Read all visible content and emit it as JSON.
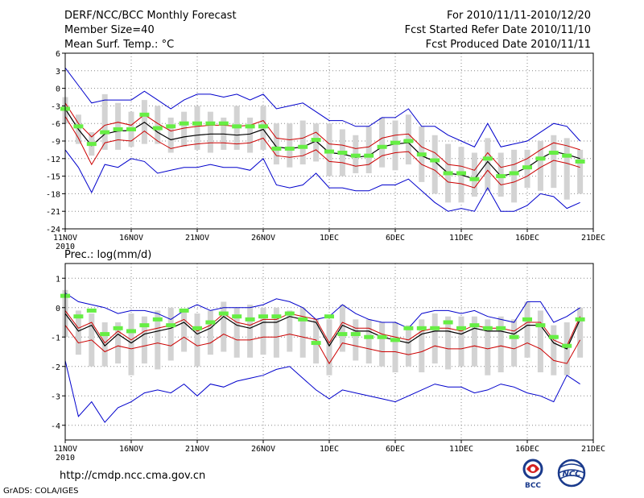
{
  "header": {
    "title": "DERF/NCC/BCC Monthly Forecast",
    "member_size": "Member Size=40",
    "variable": "Mean Surf. Temp.: °C",
    "period": "For 2010/11/11-2010/12/20",
    "fcst_started": "Fcst Started Refer Date 2010/11/10",
    "fcst_produced": "Fcst Produced Date 2010/11/11"
  },
  "footer": {
    "url": "http://cmdp.ncc.cma.gov.cn",
    "grads": "GrADS: COLA/IGES"
  },
  "logos": {
    "bcc": "BCC",
    "ncc": "NCC"
  },
  "colors": {
    "range_line": "#0000cc",
    "std_line": "#cc0000",
    "mean_line": "#000000",
    "box_fill": "#d3d3d3",
    "median_marker": "#66ee44",
    "grid": "#888888"
  },
  "chart_data": [
    {
      "type": "line",
      "panel": "temperature",
      "title": "Mean Surf. Temp.: °C",
      "ylabel": "°C",
      "ylim": [
        -24,
        6
      ],
      "yticks": [
        6,
        3,
        0,
        -3,
        -6,
        -9,
        -12,
        -15,
        -18,
        -21,
        -24
      ],
      "xticks": [
        {
          "day": 0,
          "label": "11NOV",
          "sub": "2010"
        },
        {
          "day": 5,
          "label": "16NOV"
        },
        {
          "day": 10,
          "label": "21NOV"
        },
        {
          "day": 15,
          "label": "26NOV"
        },
        {
          "day": 20,
          "label": "1DEC"
        },
        {
          "day": 25,
          "label": "6DEC"
        },
        {
          "day": 30,
          "label": "11DEC"
        },
        {
          "day": 35,
          "label": "16DEC"
        },
        {
          "day": 40,
          "label": "21DEC"
        }
      ],
      "days": [
        0,
        1,
        2,
        3,
        4,
        5,
        6,
        7,
        8,
        9,
        10,
        11,
        12,
        13,
        14,
        15,
        16,
        17,
        18,
        19,
        20,
        21,
        22,
        23,
        24,
        25,
        26,
        27,
        28,
        29,
        30,
        31,
        32,
        33,
        34,
        35,
        36,
        37,
        38,
        39
      ],
      "mean": [
        -3.5,
        -7.0,
        -9.8,
        -7.8,
        -7.3,
        -7.2,
        -5.8,
        -7.5,
        -8.8,
        -8.3,
        -8.0,
        -7.8,
        -7.8,
        -8.0,
        -7.8,
        -7.0,
        -10.0,
        -10.3,
        -10.0,
        -9.0,
        -11.0,
        -11.2,
        -11.8,
        -11.5,
        -10.0,
        -9.5,
        -9.3,
        -11.5,
        -12.5,
        -14.5,
        -14.8,
        -15.5,
        -12.5,
        -15.0,
        -14.5,
        -13.5,
        -12.0,
        -10.8,
        -11.3,
        -12.0
      ],
      "std_upper": [
        -2.5,
        -6.0,
        -8.3,
        -6.3,
        -5.8,
        -6.3,
        -4.5,
        -6.0,
        -7.3,
        -6.8,
        -6.5,
        -6.3,
        -6.3,
        -6.5,
        -6.3,
        -5.5,
        -8.5,
        -8.8,
        -8.5,
        -7.5,
        -9.5,
        -9.7,
        -10.3,
        -10.0,
        -8.5,
        -8.0,
        -7.8,
        -10.0,
        -11.0,
        -13.0,
        -13.3,
        -14.0,
        -11.0,
        -13.5,
        -13.0,
        -12.0,
        -10.5,
        -9.3,
        -9.8,
        -10.5
      ],
      "std_lower": [
        -4.8,
        -8.5,
        -13.0,
        -9.3,
        -8.8,
        -9.0,
        -7.3,
        -9.0,
        -10.3,
        -9.8,
        -9.5,
        -9.3,
        -9.3,
        -9.5,
        -9.3,
        -8.5,
        -11.5,
        -11.8,
        -11.5,
        -10.5,
        -12.5,
        -12.7,
        -13.3,
        -13.0,
        -11.5,
        -11.0,
        -10.8,
        -13.0,
        -14.0,
        -16.0,
        -16.3,
        -17.0,
        -14.0,
        -16.5,
        -16.0,
        -15.0,
        -13.5,
        -12.3,
        -12.8,
        -13.5
      ],
      "max": [
        3.5,
        0.5,
        -2.5,
        -2.0,
        -2.0,
        -2.0,
        -0.5,
        -2.0,
        -3.5,
        -2.0,
        -1.0,
        -1.0,
        -1.5,
        -1.0,
        -2.0,
        -1.0,
        -3.5,
        -3.0,
        -2.5,
        -4.0,
        -5.5,
        -5.5,
        -6.5,
        -6.5,
        -5.0,
        -5.0,
        -3.5,
        -6.5,
        -6.5,
        -8.0,
        -9.0,
        -10.0,
        -6.0,
        -10.0,
        -9.5,
        -9.0,
        -7.5,
        -6.0,
        -6.5,
        -9.0
      ],
      "min": [
        -10.5,
        -13.5,
        -17.8,
        -13.0,
        -13.5,
        -12.0,
        -12.5,
        -14.5,
        -14.0,
        -13.5,
        -13.5,
        -13.0,
        -13.5,
        -13.5,
        -14.0,
        -12.0,
        -16.5,
        -17.0,
        -16.5,
        -14.5,
        -17.0,
        -17.0,
        -17.5,
        -17.5,
        -16.5,
        -16.5,
        -15.5,
        -17.5,
        -19.5,
        -21.0,
        -20.5,
        -21.0,
        -17.0,
        -21.0,
        -21.0,
        -20.0,
        -18.0,
        -18.5,
        -20.5,
        -19.5
      ],
      "box_upper": [
        -1.5,
        -4.5,
        -7.5,
        -1.0,
        -2.5,
        -4.0,
        -2.0,
        -3.0,
        -5.0,
        -4.0,
        -3.0,
        -4.0,
        -5.0,
        -3.0,
        -5.0,
        -3.0,
        -6.0,
        -6.0,
        -5.5,
        -6.0,
        -6.0,
        -7.0,
        -8.0,
        -6.5,
        -5.0,
        -5.5,
        -4.5,
        -6.5,
        -8.0,
        -9.5,
        -10.0,
        -11.0,
        -8.5,
        -11.0,
        -10.5,
        -10.5,
        -9.0,
        -8.0,
        -8.5,
        -10.5
      ],
      "box_lower": [
        -6.0,
        -9.5,
        -11.5,
        -10.5,
        -10.5,
        -10.0,
        -9.5,
        -9.5,
        -11.0,
        -10.0,
        -10.5,
        -11.0,
        -10.5,
        -10.5,
        -11.0,
        -10.5,
        -13.0,
        -13.5,
        -13.0,
        -12.5,
        -15.0,
        -15.0,
        -14.5,
        -14.5,
        -13.5,
        -14.0,
        -13.0,
        -16.0,
        -18.0,
        -19.5,
        -19.5,
        -18.5,
        -17.5,
        -18.5,
        -19.5,
        -17.0,
        -17.5,
        -17.0,
        -19.0,
        -18.0
      ],
      "median": [
        -3.5,
        -6.5,
        -9.5,
        -7.5,
        -7.0,
        -7.0,
        -4.5,
        -6.8,
        -6.5,
        -6.0,
        -6.0,
        -6.0,
        -6.0,
        -6.5,
        -6.5,
        -6.5,
        -10.3,
        -10.3,
        -10.0,
        -8.8,
        -10.8,
        -11.0,
        -11.5,
        -11.5,
        -10.0,
        -9.3,
        -9.0,
        -11.3,
        -12.3,
        -14.5,
        -14.5,
        -15.5,
        -12.0,
        -15.0,
        -14.5,
        -13.5,
        -12.0,
        -11.0,
        -11.5,
        -12.5
      ]
    },
    {
      "type": "line",
      "panel": "precipitation",
      "title": "Prec.: log(mm/d)",
      "ylabel": "log(mm/d)",
      "ylim": [
        -4.5,
        1.5
      ],
      "yticks": [
        1,
        0,
        -1,
        -2,
        -3,
        -4
      ],
      "xticks": [
        {
          "day": 0,
          "label": "11NOV",
          "sub": "2010"
        },
        {
          "day": 5,
          "label": "16NOV"
        },
        {
          "day": 10,
          "label": "21NOV"
        },
        {
          "day": 15,
          "label": "26NOV"
        },
        {
          "day": 20,
          "label": "1DEC"
        },
        {
          "day": 25,
          "label": "6DEC"
        },
        {
          "day": 30,
          "label": "11DEC"
        },
        {
          "day": 35,
          "label": "16DEC"
        },
        {
          "day": 40,
          "label": "21DEC"
        }
      ],
      "days": [
        0,
        1,
        2,
        3,
        4,
        5,
        6,
        7,
        8,
        9,
        10,
        11,
        12,
        13,
        14,
        15,
        16,
        17,
        18,
        19,
        20,
        21,
        22,
        23,
        24,
        25,
        26,
        27,
        28,
        29,
        30,
        31,
        32,
        33,
        34,
        35,
        36,
        37,
        38,
        39
      ],
      "mean": [
        -0.2,
        -0.8,
        -0.6,
        -1.3,
        -0.9,
        -1.2,
        -0.9,
        -0.8,
        -0.7,
        -0.5,
        -0.9,
        -0.7,
        -0.3,
        -0.6,
        -0.7,
        -0.5,
        -0.5,
        -0.3,
        -0.4,
        -0.5,
        -1.3,
        -0.6,
        -0.8,
        -0.8,
        -1.0,
        -1.1,
        -1.2,
        -0.9,
        -0.8,
        -0.8,
        -0.9,
        -0.7,
        -0.8,
        -0.8,
        -0.9,
        -0.6,
        -0.6,
        -1.2,
        -1.4,
        -0.4
      ],
      "std_upper": [
        -0.1,
        -0.7,
        -0.5,
        -1.2,
        -0.8,
        -1.1,
        -0.8,
        -0.7,
        -0.6,
        -0.4,
        -0.8,
        -0.6,
        -0.2,
        -0.5,
        -0.6,
        -0.4,
        -0.4,
        -0.2,
        -0.3,
        -0.4,
        -1.2,
        -0.5,
        -0.7,
        -0.7,
        -0.9,
        -1.0,
        -1.1,
        -0.8,
        -0.7,
        -0.7,
        -0.8,
        -0.6,
        -0.7,
        -0.7,
        -0.8,
        -0.5,
        -0.5,
        -1.1,
        -1.3,
        -0.3
      ],
      "std_lower": [
        -0.6,
        -1.2,
        -1.1,
        -1.5,
        -1.3,
        -1.4,
        -1.3,
        -1.2,
        -1.3,
        -1.0,
        -1.3,
        -1.2,
        -0.9,
        -1.1,
        -1.1,
        -1.0,
        -1.0,
        -0.9,
        -1.0,
        -1.1,
        -1.9,
        -1.2,
        -1.3,
        -1.4,
        -1.5,
        -1.5,
        -1.6,
        -1.5,
        -1.3,
        -1.4,
        -1.4,
        -1.3,
        -1.4,
        -1.3,
        -1.4,
        -1.2,
        -1.4,
        -1.8,
        -1.9,
        -1.1
      ],
      "max": [
        0.5,
        0.2,
        0.1,
        0.0,
        -0.2,
        -0.1,
        -0.1,
        -0.2,
        -0.4,
        -0.1,
        0.1,
        -0.1,
        0.0,
        0.0,
        0.0,
        0.1,
        0.3,
        0.2,
        0.0,
        -0.4,
        -0.3,
        0.1,
        -0.2,
        -0.4,
        -0.5,
        -0.5,
        -0.7,
        -0.2,
        -0.1,
        -0.1,
        -0.2,
        -0.1,
        -0.3,
        -0.4,
        -0.5,
        0.2,
        0.2,
        -0.5,
        -0.3,
        0.0
      ],
      "min": [
        -1.8,
        -3.7,
        -3.2,
        -3.9,
        -3.4,
        -3.2,
        -2.9,
        -2.8,
        -2.9,
        -2.6,
        -3.0,
        -2.6,
        -2.7,
        -2.5,
        -2.4,
        -2.3,
        -2.1,
        -2.0,
        -2.4,
        -2.8,
        -3.1,
        -2.8,
        -2.9,
        -3.0,
        -3.1,
        -3.2,
        -3.0,
        -2.8,
        -2.6,
        -2.7,
        -2.7,
        -2.9,
        -2.8,
        -2.6,
        -2.7,
        -2.9,
        -3.0,
        -3.2,
        -2.3,
        -2.6
      ],
      "box_upper": [
        0.6,
        -0.1,
        -0.2,
        -0.5,
        -0.5,
        -0.2,
        -0.3,
        -0.1,
        0.0,
        -0.1,
        -0.2,
        -0.1,
        0.2,
        0.0,
        0.1,
        0.0,
        0.0,
        -0.1,
        0.0,
        -0.4,
        -0.4,
        0.1,
        -0.4,
        -0.4,
        -0.5,
        -0.5,
        -0.6,
        -0.4,
        -0.2,
        -0.3,
        -0.3,
        -0.3,
        -0.4,
        -0.3,
        -0.4,
        0.2,
        -0.1,
        -0.6,
        -0.5,
        0.0
      ],
      "box_lower": [
        -1.0,
        -1.6,
        -2.0,
        -2.0,
        -1.9,
        -2.3,
        -1.9,
        -2.1,
        -1.8,
        -1.5,
        -2.0,
        -1.6,
        -1.5,
        -1.7,
        -1.7,
        -1.6,
        -1.7,
        -1.5,
        -1.7,
        -1.9,
        -2.3,
        -1.5,
        -1.8,
        -1.9,
        -2.0,
        -2.2,
        -2.0,
        -2.2,
        -1.9,
        -2.1,
        -2.0,
        -2.0,
        -2.3,
        -2.2,
        -2.0,
        -1.7,
        -2.2,
        -2.3,
        -2.3,
        -1.7
      ],
      "median": [
        0.4,
        -0.3,
        -0.1,
        -0.9,
        -0.7,
        -0.8,
        -0.6,
        -0.4,
        -0.6,
        -0.1,
        -0.7,
        -0.5,
        -0.2,
        -0.3,
        -0.4,
        -0.3,
        -0.3,
        -0.2,
        -0.4,
        -1.2,
        -0.3,
        -0.9,
        -0.9,
        -1.0,
        -1.0,
        -1.1,
        -0.7,
        -0.7,
        -0.7,
        -0.5,
        -0.7,
        -0.6,
        -0.7,
        -0.7,
        -1.0,
        -0.4,
        -0.6,
        -1.0,
        -1.3,
        -0.4
      ]
    }
  ]
}
